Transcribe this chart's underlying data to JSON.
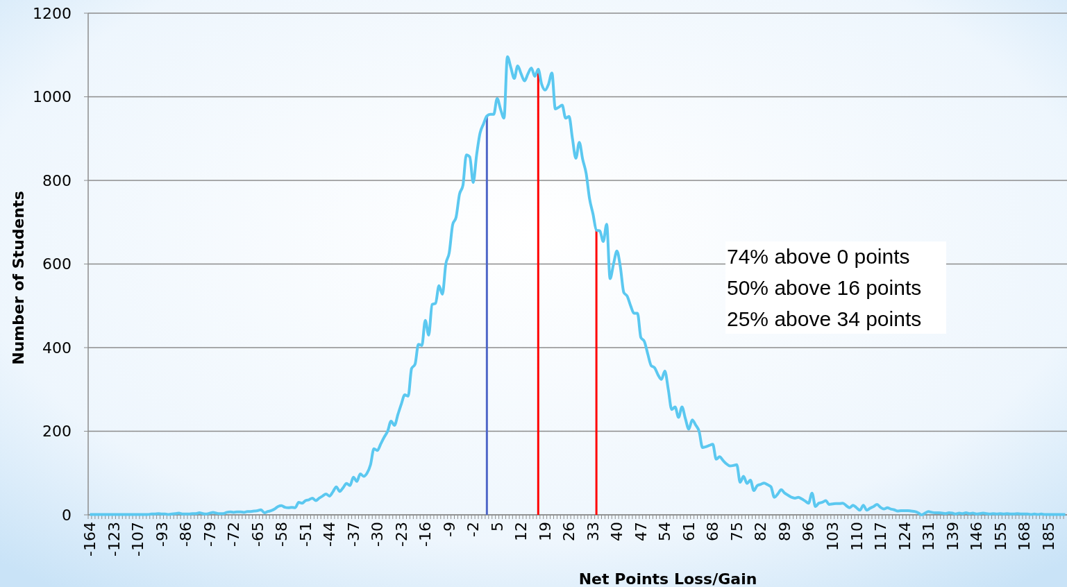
{
  "chart_data": {
    "type": "line",
    "xlabel": "Net Points Loss/Gain",
    "ylabel": "Number of Students",
    "categories": [
      "-164",
      null,
      null,
      null,
      null,
      null,
      null,
      "-123",
      null,
      null,
      null,
      null,
      null,
      null,
      "-107",
      null,
      null,
      null,
      null,
      null,
      null,
      "-93",
      null,
      null,
      null,
      null,
      null,
      null,
      "-86",
      null,
      null,
      null,
      null,
      null,
      null,
      "-79",
      null,
      null,
      null,
      null,
      null,
      null,
      "-72",
      null,
      null,
      null,
      null,
      null,
      null,
      "-65",
      null,
      null,
      null,
      null,
      null,
      null,
      "-58",
      null,
      null,
      null,
      null,
      null,
      null,
      "-51",
      null,
      null,
      null,
      null,
      null,
      null,
      "-44",
      null,
      null,
      null,
      null,
      null,
      null,
      "-37",
      null,
      null,
      null,
      null,
      null,
      null,
      "-30",
      null,
      null,
      null,
      null,
      null,
      null,
      "-23",
      null,
      null,
      null,
      null,
      null,
      null,
      "-16",
      null,
      null,
      null,
      null,
      null,
      null,
      "-9",
      null,
      null,
      null,
      null,
      null,
      null,
      "-2",
      null,
      null,
      null,
      null,
      null,
      null,
      "5",
      null,
      null,
      null,
      null,
      null,
      null,
      "12",
      null,
      null,
      null,
      null,
      null,
      null,
      "19",
      null,
      null,
      null,
      null,
      null,
      null,
      "26",
      null,
      null,
      null,
      null,
      null,
      null,
      "33",
      null,
      null,
      null,
      null,
      null,
      null,
      "40",
      null,
      null,
      null,
      null,
      null,
      null,
      "47",
      null,
      null,
      null,
      null,
      null,
      null,
      "54",
      null,
      null,
      null,
      null,
      null,
      null,
      "61",
      null,
      null,
      null,
      null,
      null,
      null,
      "68",
      null,
      null,
      null,
      null,
      null,
      null,
      "75",
      null,
      null,
      null,
      null,
      null,
      null,
      "82",
      null,
      null,
      null,
      null,
      null,
      null,
      "89",
      null,
      null,
      null,
      null,
      null,
      null,
      "96",
      null,
      null,
      null,
      null,
      null,
      null,
      "103",
      null,
      null,
      null,
      null,
      null,
      null,
      "110",
      null,
      null,
      null,
      null,
      null,
      null,
      "117",
      null,
      null,
      null,
      null,
      null,
      null,
      "124",
      null,
      null,
      null,
      null,
      null,
      null,
      "131",
      null,
      null,
      null,
      null,
      null,
      null,
      "139",
      null,
      null,
      null,
      null,
      null,
      null,
      "146",
      null,
      null,
      null,
      null,
      null,
      null,
      "155",
      null,
      null,
      null,
      null,
      null,
      null,
      "168",
      null,
      null,
      null,
      null,
      null,
      null,
      "185",
      null,
      null,
      null,
      null,
      null
    ],
    "series": [
      {
        "color": "#5bc8f0",
        "values": [
          1,
          1,
          1,
          1,
          1,
          1,
          1,
          1,
          1,
          1,
          1,
          1,
          1,
          1,
          1,
          1,
          1,
          1,
          2,
          2,
          3,
          2,
          2,
          1,
          2,
          3,
          4,
          2,
          2,
          2,
          3,
          3,
          5,
          3,
          2,
          4,
          6,
          4,
          3,
          3,
          6,
          7,
          6,
          7,
          7,
          6,
          8,
          8,
          9,
          10,
          12,
          5,
          8,
          10,
          14,
          20,
          22,
          18,
          17,
          18,
          17,
          30,
          28,
          34,
          36,
          40,
          34,
          40,
          45,
          50,
          45,
          55,
          67,
          56,
          65,
          75,
          70,
          90,
          80,
          98,
          92,
          100,
          120,
          158,
          154,
          170,
          186,
          200,
          224,
          214,
          240,
          265,
          287,
          284,
          350,
          360,
          408,
          405,
          465,
          430,
          503,
          506,
          548,
          528,
          600,
          627,
          694,
          712,
          767,
          788,
          861,
          856,
          795,
          861,
          913,
          935,
          954,
          958,
          958,
          996,
          970,
          949,
          1096,
          1070,
          1044,
          1074,
          1055,
          1038,
          1055,
          1069,
          1049,
          1066,
          1030,
          1016,
          1030,
          1057,
          971,
          975,
          980,
          949,
          953,
          900,
          853,
          891,
          850,
          817,
          756,
          720,
          681,
          679,
          654,
          695,
          565,
          600,
          631,
          593,
          532,
          523,
          500,
          482,
          482,
          424,
          415,
          385,
          357,
          352,
          335,
          324,
          344,
          300,
          252,
          258,
          233,
          258,
          230,
          205,
          227,
          215,
          200,
          161,
          163,
          166,
          169,
          133,
          139,
          130,
          122,
          117,
          118,
          120,
          78,
          92,
          75,
          83,
          58,
          70,
          73,
          76,
          72,
          67,
          42,
          50,
          60,
          52,
          47,
          42,
          40,
          42,
          38,
          33,
          28,
          52,
          20,
          28,
          30,
          34,
          25,
          26,
          27,
          27,
          28,
          22,
          17,
          23,
          17,
          11,
          23,
          11,
          16,
          20,
          25,
          18,
          14,
          17,
          14,
          12,
          9,
          10,
          10,
          10,
          9,
          8,
          5,
          0,
          4,
          8,
          6,
          5,
          5,
          4,
          3,
          5,
          4,
          2,
          4,
          3,
          5,
          3,
          4,
          2,
          3,
          4,
          3,
          2,
          3,
          2,
          3,
          2,
          3,
          2,
          2,
          3,
          2,
          2,
          2,
          1,
          2,
          1,
          2,
          1,
          1,
          1,
          1,
          1,
          1,
          1
        ]
      }
    ],
    "ylim": [
      0,
      1200
    ],
    "yticks": [
      0,
      200,
      400,
      600,
      800,
      1000,
      1200
    ],
    "grid": "y",
    "annotations": [
      "74% above 0 points",
      "50% above 16 points",
      "25% above 34 points"
    ]
  }
}
